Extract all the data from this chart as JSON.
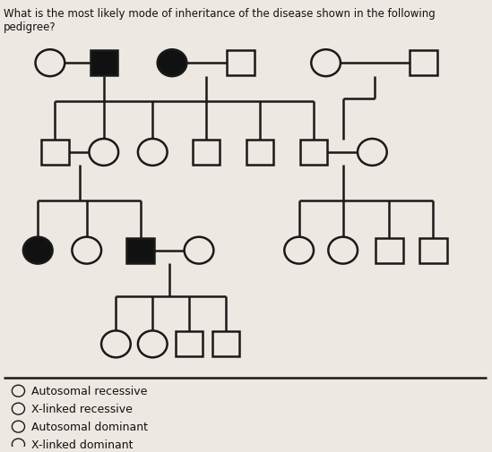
{
  "title": "What is the most likely mode of inheritance of the disease shown in the following pedigree?",
  "title_fontsize": 8.5,
  "bg_color": "#ede8e2",
  "line_color": "#1a1a1a",
  "fill_affected": "#111111",
  "fill_unaffected": "#ede8e2",
  "choices": [
    "Autosomal recessive",
    "X-linked recessive",
    "Autosomal dominant",
    "X-linked dominant"
  ],
  "choice_fontsize": 9.0,
  "sym_r": 0.3,
  "sym_sq": 0.28
}
